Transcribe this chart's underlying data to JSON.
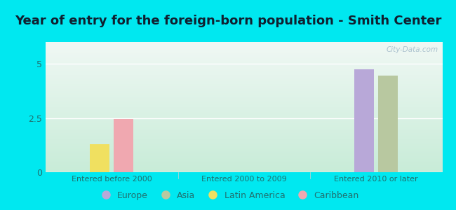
{
  "title": "Year of entry for the foreign-born population - Smith Center",
  "categories": [
    "Entered before 2000",
    "Entered 2000 to 2009",
    "Entered 2010 or later"
  ],
  "series": {
    "Europe": [
      0,
      0,
      4.75
    ],
    "Asia": [
      0,
      0,
      4.45
    ],
    "Latin America": [
      1.3,
      0,
      0
    ],
    "Caribbean": [
      2.45,
      0,
      0
    ]
  },
  "colors": {
    "Europe": "#b8a8d8",
    "Asia": "#b8c8a0",
    "Latin America": "#f0e060",
    "Caribbean": "#f0a8b0"
  },
  "ylim": [
    0,
    6
  ],
  "yticks": [
    0,
    2.5,
    5
  ],
  "background_color": "#00e8f0",
  "plot_bg_top": "#f0f8f4",
  "plot_bg_bottom": "#c8ecd8",
  "title_fontsize": 13,
  "title_color": "#102030",
  "tick_label_color": "#207070",
  "xtick_label_color": "#207070",
  "legend_fontsize": 9,
  "bar_width": 0.15,
  "group_positions": [
    0,
    1,
    2
  ],
  "watermark": "City-Data.com",
  "watermark_color": "#a0b8c8"
}
